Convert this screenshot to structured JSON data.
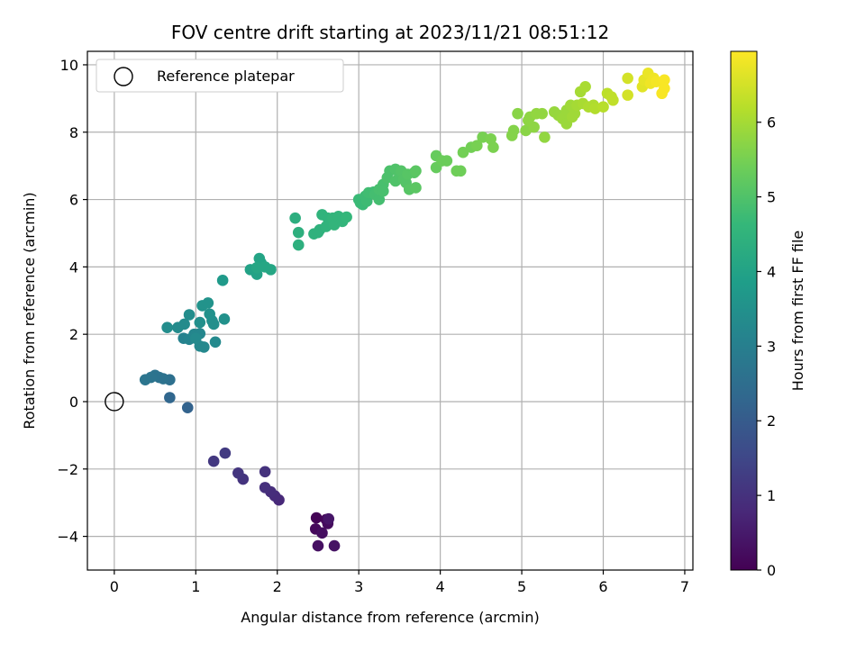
{
  "chart_data": {
    "type": "scatter",
    "title": "FOV centre drift starting at 2023/11/21 08:51:12",
    "xlabel": "Angular distance from reference (arcmin)",
    "ylabel": "Rotation from reference (arcmin)",
    "xlim": [
      -0.33,
      7.1
    ],
    "ylim": [
      -5.0,
      10.4
    ],
    "xticks": [
      0,
      1,
      2,
      3,
      4,
      5,
      6,
      7
    ],
    "yticks": [
      -4,
      -2,
      0,
      2,
      4,
      6,
      8,
      10
    ],
    "grid": true,
    "legend": {
      "placement": "top-left",
      "entries": [
        "Reference platepar"
      ]
    },
    "reference_point": {
      "x": 0,
      "y": 0,
      "marker": "hollow-circle"
    },
    "colorbar": {
      "label": "Hours from first FF file",
      "colormap": "viridis",
      "range": [
        0,
        6.95
      ],
      "ticks": [
        0,
        1,
        2,
        3,
        4,
        5,
        6
      ]
    },
    "colormap_stops": [
      "#440154",
      "#482878",
      "#3e4989",
      "#31688e",
      "#26828e",
      "#1f9e89",
      "#35b779",
      "#6ece58",
      "#b5de2b",
      "#fde725"
    ],
    "points": [
      {
        "x": 2.48,
        "y": -3.45,
        "t": 0.05
      },
      {
        "x": 2.6,
        "y": -3.5,
        "t": 0.1
      },
      {
        "x": 2.47,
        "y": -3.78,
        "t": 0.15
      },
      {
        "x": 2.62,
        "y": -3.62,
        "t": 0.2
      },
      {
        "x": 2.55,
        "y": -3.9,
        "t": 0.25
      },
      {
        "x": 2.5,
        "y": -4.28,
        "t": 0.3
      },
      {
        "x": 2.7,
        "y": -4.28,
        "t": 0.35
      },
      {
        "x": 2.63,
        "y": -3.48,
        "t": 0.4
      },
      {
        "x": 2.02,
        "y": -2.92,
        "t": 0.8
      },
      {
        "x": 1.97,
        "y": -2.8,
        "t": 0.85
      },
      {
        "x": 1.92,
        "y": -2.68,
        "t": 0.9
      },
      {
        "x": 1.85,
        "y": -2.55,
        "t": 0.95
      },
      {
        "x": 1.85,
        "y": -2.08,
        "t": 1.0
      },
      {
        "x": 1.58,
        "y": -2.3,
        "t": 1.05
      },
      {
        "x": 1.52,
        "y": -2.12,
        "t": 1.1
      },
      {
        "x": 1.22,
        "y": -1.77,
        "t": 1.15
      },
      {
        "x": 1.36,
        "y": -1.53,
        "t": 1.2
      },
      {
        "x": 0.9,
        "y": -0.18,
        "t": 2.2
      },
      {
        "x": 0.68,
        "y": 0.12,
        "t": 2.3
      },
      {
        "x": 0.68,
        "y": 0.65,
        "t": 2.55
      },
      {
        "x": 0.6,
        "y": 0.68,
        "t": 2.6
      },
      {
        "x": 0.55,
        "y": 0.72,
        "t": 2.62
      },
      {
        "x": 0.5,
        "y": 0.78,
        "t": 2.65
      },
      {
        "x": 0.45,
        "y": 0.72,
        "t": 2.68
      },
      {
        "x": 0.38,
        "y": 0.65,
        "t": 2.7
      },
      {
        "x": 0.85,
        "y": 1.88,
        "t": 3.1
      },
      {
        "x": 0.92,
        "y": 1.85,
        "t": 3.15
      },
      {
        "x": 0.98,
        "y": 2.0,
        "t": 3.2
      },
      {
        "x": 1.05,
        "y": 2.02,
        "t": 3.2
      },
      {
        "x": 1.1,
        "y": 1.62,
        "t": 3.25
      },
      {
        "x": 1.05,
        "y": 1.65,
        "t": 3.25
      },
      {
        "x": 1.0,
        "y": 1.88,
        "t": 3.3
      },
      {
        "x": 1.24,
        "y": 1.77,
        "t": 3.3
      },
      {
        "x": 0.78,
        "y": 2.2,
        "t": 3.35
      },
      {
        "x": 0.86,
        "y": 2.3,
        "t": 3.35
      },
      {
        "x": 0.92,
        "y": 2.58,
        "t": 3.4
      },
      {
        "x": 0.65,
        "y": 2.2,
        "t": 3.4
      },
      {
        "x": 1.05,
        "y": 2.35,
        "t": 3.45
      },
      {
        "x": 1.2,
        "y": 2.4,
        "t": 3.45
      },
      {
        "x": 1.22,
        "y": 2.3,
        "t": 3.45
      },
      {
        "x": 1.17,
        "y": 2.6,
        "t": 3.5
      },
      {
        "x": 1.35,
        "y": 2.45,
        "t": 3.5
      },
      {
        "x": 1.08,
        "y": 2.85,
        "t": 3.55
      },
      {
        "x": 1.15,
        "y": 2.93,
        "t": 3.55
      },
      {
        "x": 1.33,
        "y": 3.6,
        "t": 3.75
      },
      {
        "x": 1.67,
        "y": 3.92,
        "t": 4.0
      },
      {
        "x": 1.75,
        "y": 3.78,
        "t": 4.0
      },
      {
        "x": 1.78,
        "y": 4.25,
        "t": 4.05
      },
      {
        "x": 1.8,
        "y": 4.12,
        "t": 4.05
      },
      {
        "x": 1.85,
        "y": 4.0,
        "t": 4.1
      },
      {
        "x": 1.75,
        "y": 3.98,
        "t": 4.1
      },
      {
        "x": 1.92,
        "y": 3.92,
        "t": 4.1
      },
      {
        "x": 2.22,
        "y": 5.45,
        "t": 4.35
      },
      {
        "x": 2.26,
        "y": 5.02,
        "t": 4.4
      },
      {
        "x": 2.26,
        "y": 4.65,
        "t": 4.4
      },
      {
        "x": 2.45,
        "y": 4.98,
        "t": 4.45
      },
      {
        "x": 2.5,
        "y": 5.02,
        "t": 4.45
      },
      {
        "x": 2.52,
        "y": 5.1,
        "t": 4.45
      },
      {
        "x": 2.55,
        "y": 5.55,
        "t": 4.5
      },
      {
        "x": 2.62,
        "y": 5.45,
        "t": 4.5
      },
      {
        "x": 2.6,
        "y": 5.2,
        "t": 4.5
      },
      {
        "x": 2.68,
        "y": 5.45,
        "t": 4.55
      },
      {
        "x": 2.7,
        "y": 5.25,
        "t": 4.55
      },
      {
        "x": 2.75,
        "y": 5.5,
        "t": 4.55
      },
      {
        "x": 2.8,
        "y": 5.35,
        "t": 4.55
      },
      {
        "x": 2.85,
        "y": 5.48,
        "t": 4.6
      },
      {
        "x": 3.0,
        "y": 6.0,
        "t": 4.7
      },
      {
        "x": 3.02,
        "y": 5.9,
        "t": 4.7
      },
      {
        "x": 3.05,
        "y": 5.85,
        "t": 4.7
      },
      {
        "x": 3.08,
        "y": 6.1,
        "t": 4.75
      },
      {
        "x": 3.1,
        "y": 5.95,
        "t": 4.75
      },
      {
        "x": 3.12,
        "y": 6.2,
        "t": 4.8
      },
      {
        "x": 3.18,
        "y": 6.22,
        "t": 4.8
      },
      {
        "x": 3.2,
        "y": 6.15,
        "t": 4.85
      },
      {
        "x": 3.25,
        "y": 6.0,
        "t": 4.85
      },
      {
        "x": 3.25,
        "y": 6.3,
        "t": 4.9
      },
      {
        "x": 3.3,
        "y": 6.45,
        "t": 4.9
      },
      {
        "x": 3.3,
        "y": 6.25,
        "t": 4.9
      },
      {
        "x": 3.35,
        "y": 6.65,
        "t": 4.95
      },
      {
        "x": 3.38,
        "y": 6.85,
        "t": 4.95
      },
      {
        "x": 3.45,
        "y": 6.9,
        "t": 5.0
      },
      {
        "x": 3.45,
        "y": 6.55,
        "t": 5.0
      },
      {
        "x": 3.5,
        "y": 6.7,
        "t": 5.0
      },
      {
        "x": 3.52,
        "y": 6.85,
        "t": 5.05
      },
      {
        "x": 3.55,
        "y": 6.6,
        "t": 5.05
      },
      {
        "x": 3.58,
        "y": 6.5,
        "t": 5.05
      },
      {
        "x": 3.6,
        "y": 6.75,
        "t": 5.1
      },
      {
        "x": 3.62,
        "y": 6.3,
        "t": 5.1
      },
      {
        "x": 3.68,
        "y": 6.8,
        "t": 5.1
      },
      {
        "x": 3.7,
        "y": 6.85,
        "t": 5.15
      },
      {
        "x": 3.7,
        "y": 6.35,
        "t": 5.15
      },
      {
        "x": 3.95,
        "y": 7.3,
        "t": 5.3
      },
      {
        "x": 3.95,
        "y": 6.95,
        "t": 5.3
      },
      {
        "x": 4.02,
        "y": 7.15,
        "t": 5.35
      },
      {
        "x": 4.08,
        "y": 7.15,
        "t": 5.35
      },
      {
        "x": 4.2,
        "y": 6.85,
        "t": 5.4
      },
      {
        "x": 4.25,
        "y": 6.85,
        "t": 5.4
      },
      {
        "x": 4.28,
        "y": 7.4,
        "t": 5.45
      },
      {
        "x": 4.38,
        "y": 7.55,
        "t": 5.45
      },
      {
        "x": 4.45,
        "y": 7.6,
        "t": 5.5
      },
      {
        "x": 4.52,
        "y": 7.85,
        "t": 5.5
      },
      {
        "x": 4.62,
        "y": 7.8,
        "t": 5.55
      },
      {
        "x": 4.65,
        "y": 7.55,
        "t": 5.55
      },
      {
        "x": 4.88,
        "y": 7.9,
        "t": 5.65
      },
      {
        "x": 4.9,
        "y": 8.05,
        "t": 5.65
      },
      {
        "x": 4.95,
        "y": 8.55,
        "t": 5.7
      },
      {
        "x": 5.05,
        "y": 8.05,
        "t": 5.7
      },
      {
        "x": 5.08,
        "y": 8.35,
        "t": 5.75
      },
      {
        "x": 5.1,
        "y": 8.45,
        "t": 5.75
      },
      {
        "x": 5.15,
        "y": 8.15,
        "t": 5.75
      },
      {
        "x": 5.18,
        "y": 8.55,
        "t": 5.8
      },
      {
        "x": 5.25,
        "y": 8.55,
        "t": 5.8
      },
      {
        "x": 5.28,
        "y": 7.85,
        "t": 5.8
      },
      {
        "x": 5.4,
        "y": 8.6,
        "t": 5.85
      },
      {
        "x": 5.45,
        "y": 8.5,
        "t": 5.85
      },
      {
        "x": 5.5,
        "y": 8.4,
        "t": 5.9
      },
      {
        "x": 5.55,
        "y": 8.65,
        "t": 5.9
      },
      {
        "x": 5.55,
        "y": 8.25,
        "t": 5.9
      },
      {
        "x": 5.6,
        "y": 8.8,
        "t": 5.95
      },
      {
        "x": 5.62,
        "y": 8.45,
        "t": 5.95
      },
      {
        "x": 5.65,
        "y": 8.55,
        "t": 5.95
      },
      {
        "x": 5.68,
        "y": 8.8,
        "t": 6.0
      },
      {
        "x": 5.72,
        "y": 9.2,
        "t": 6.0
      },
      {
        "x": 5.75,
        "y": 8.85,
        "t": 6.05
      },
      {
        "x": 5.78,
        "y": 9.35,
        "t": 6.05
      },
      {
        "x": 5.82,
        "y": 8.75,
        "t": 6.1
      },
      {
        "x": 5.88,
        "y": 8.8,
        "t": 6.1
      },
      {
        "x": 5.9,
        "y": 8.7,
        "t": 6.15
      },
      {
        "x": 6.0,
        "y": 8.75,
        "t": 6.2
      },
      {
        "x": 6.05,
        "y": 9.15,
        "t": 6.25
      },
      {
        "x": 6.1,
        "y": 9.05,
        "t": 6.3
      },
      {
        "x": 6.12,
        "y": 8.95,
        "t": 6.3
      },
      {
        "x": 6.3,
        "y": 9.6,
        "t": 6.5
      },
      {
        "x": 6.3,
        "y": 9.1,
        "t": 6.5
      },
      {
        "x": 6.48,
        "y": 9.35,
        "t": 6.65
      },
      {
        "x": 6.5,
        "y": 9.55,
        "t": 6.7
      },
      {
        "x": 6.55,
        "y": 9.75,
        "t": 6.75
      },
      {
        "x": 6.58,
        "y": 9.45,
        "t": 6.8
      },
      {
        "x": 6.62,
        "y": 9.6,
        "t": 6.8
      },
      {
        "x": 6.65,
        "y": 9.5,
        "t": 6.85
      },
      {
        "x": 6.75,
        "y": 9.55,
        "t": 6.9
      },
      {
        "x": 6.75,
        "y": 9.3,
        "t": 6.9
      },
      {
        "x": 6.72,
        "y": 9.15,
        "t": 6.9
      }
    ]
  }
}
